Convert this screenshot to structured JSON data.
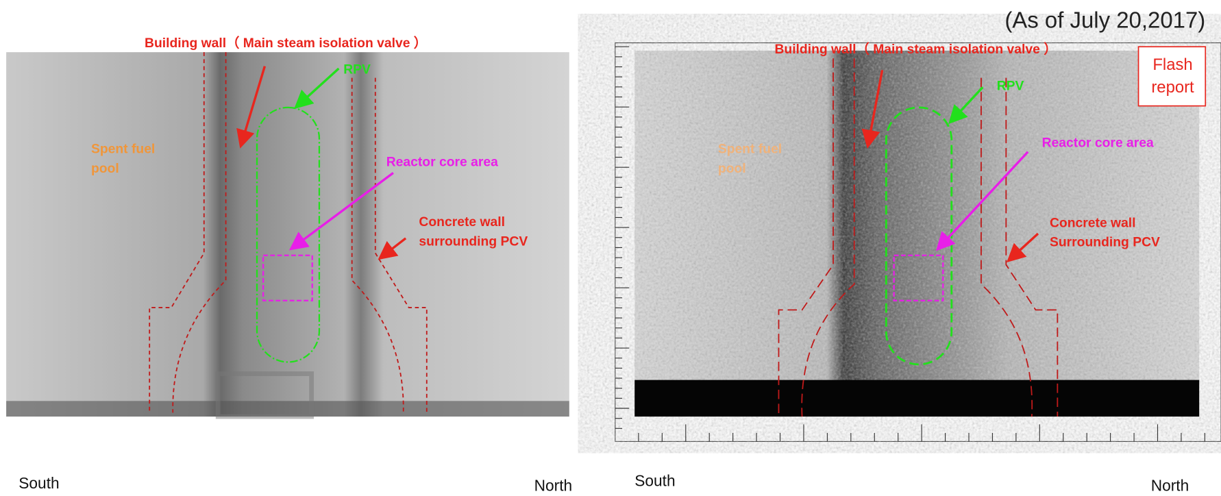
{
  "date_note": "(As of July 20,2017)",
  "left_panel": {
    "building_wall": "Building wall（ Main steam isolation valve ）",
    "rpv": "RPV",
    "spent_fuel": [
      "Spent fuel",
      "pool"
    ],
    "reactor_core": "Reactor core area",
    "concrete_wall": [
      "Concrete wall",
      "surrounding PCV"
    ],
    "south": "South",
    "north": "North"
  },
  "right_panel": {
    "building_wall": "Building wall（ Main steam isolation valve ）",
    "rpv": "RPV",
    "spent_fuel": [
      "Spent fuel",
      "pool"
    ],
    "reactor_core": "Reactor core area",
    "concrete_wall": [
      "Concrete wall",
      "Surrounding PCV"
    ],
    "flash_report": [
      "Flash",
      "report"
    ],
    "south": "South",
    "north": "North"
  }
}
